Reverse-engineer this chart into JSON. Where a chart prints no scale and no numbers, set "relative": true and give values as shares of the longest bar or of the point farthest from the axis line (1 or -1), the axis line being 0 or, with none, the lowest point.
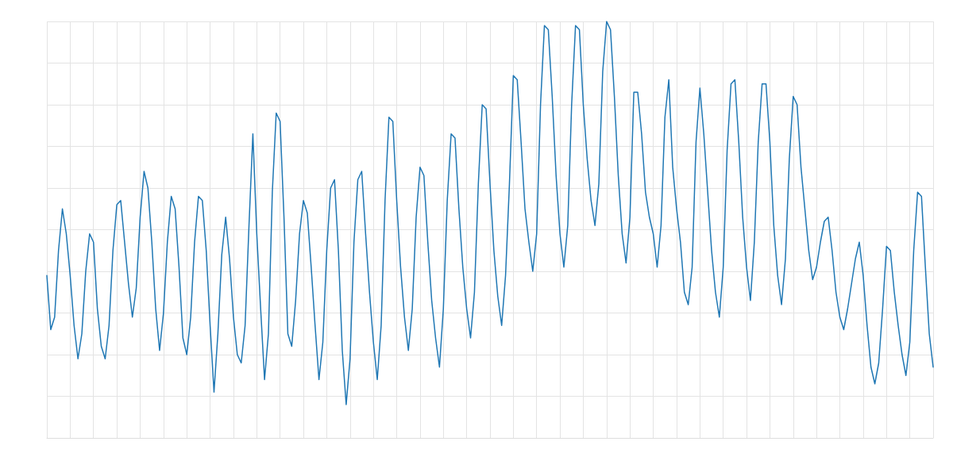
{
  "chart_data": {
    "type": "line",
    "relative": true,
    "grid": true,
    "line_style": "solid",
    "categories": [
      null,
      null,
      null,
      null,
      null,
      null,
      null,
      null,
      null,
      null,
      null,
      null,
      null,
      null,
      null,
      null,
      null,
      null,
      null,
      null,
      null,
      null,
      null,
      null,
      null,
      null,
      null,
      null,
      null,
      null,
      null,
      null,
      null,
      null,
      null,
      null,
      null,
      null,
      null,
      null,
      null,
      null,
      null,
      null,
      null,
      null,
      null,
      null,
      null,
      null,
      null,
      null,
      null,
      null,
      null,
      null,
      null,
      null,
      null,
      null,
      null,
      null,
      null,
      null,
      null,
      null,
      null,
      null,
      null,
      null,
      null,
      null,
      null,
      null,
      null,
      null,
      null,
      null,
      null,
      null,
      null,
      null,
      null,
      null,
      null,
      null,
      null,
      null,
      null,
      null,
      null,
      null,
      null,
      null,
      null,
      null,
      null,
      null,
      null,
      null,
      null,
      null,
      null,
      null,
      null,
      null,
      null,
      null,
      null,
      null,
      null,
      null,
      null,
      null,
      null,
      null,
      null,
      null,
      null,
      null,
      null,
      null,
      null,
      null,
      null,
      null,
      null,
      null,
      null,
      null,
      null,
      null,
      null,
      null,
      null,
      null,
      null,
      null,
      null,
      null,
      null,
      null,
      null,
      null,
      null,
      null,
      null,
      null,
      null,
      null,
      null,
      null,
      null,
      null,
      null,
      null,
      null,
      null,
      null,
      null,
      null,
      null,
      null,
      null,
      null,
      null,
      null,
      null,
      null,
      null,
      null,
      null,
      null,
      null,
      null,
      null,
      null,
      null,
      null,
      null,
      null,
      null,
      null,
      null,
      null,
      null,
      null,
      null,
      null,
      null,
      null,
      null,
      null,
      null,
      null,
      null,
      null,
      null,
      null,
      null,
      null,
      null,
      null,
      null,
      null,
      null,
      null,
      null,
      null,
      null,
      null,
      null,
      null,
      null,
      null,
      null,
      null,
      null,
      null,
      null,
      null,
      null,
      null,
      null,
      null,
      null,
      null,
      null,
      null
    ],
    "series": [
      {
        "color": "#1f77b4",
        "values": [
          0.39,
          0.26,
          0.29,
          0.45,
          0.55,
          0.49,
          0.39,
          0.27,
          0.19,
          0.25,
          0.4,
          0.49,
          0.47,
          0.31,
          0.22,
          0.19,
          0.27,
          0.45,
          0.56,
          0.57,
          0.47,
          0.37,
          0.29,
          0.36,
          0.53,
          0.64,
          0.6,
          0.47,
          0.31,
          0.21,
          0.3,
          0.47,
          0.58,
          0.55,
          0.41,
          0.24,
          0.2,
          0.29,
          0.47,
          0.58,
          0.57,
          0.45,
          0.27,
          0.11,
          0.25,
          0.44,
          0.53,
          0.43,
          0.29,
          0.2,
          0.18,
          0.27,
          0.51,
          0.73,
          0.49,
          0.31,
          0.14,
          0.25,
          0.59,
          0.78,
          0.76,
          0.53,
          0.25,
          0.22,
          0.33,
          0.49,
          0.57,
          0.54,
          0.41,
          0.27,
          0.14,
          0.23,
          0.45,
          0.6,
          0.62,
          0.45,
          0.21,
          0.08,
          0.19,
          0.47,
          0.62,
          0.64,
          0.49,
          0.35,
          0.23,
          0.14,
          0.27,
          0.57,
          0.77,
          0.76,
          0.57,
          0.41,
          0.29,
          0.21,
          0.31,
          0.53,
          0.65,
          0.63,
          0.47,
          0.33,
          0.24,
          0.17,
          0.31,
          0.57,
          0.73,
          0.72,
          0.55,
          0.41,
          0.31,
          0.24,
          0.35,
          0.61,
          0.8,
          0.79,
          0.61,
          0.45,
          0.34,
          0.27,
          0.39,
          0.61,
          0.87,
          0.86,
          0.71,
          0.55,
          0.47,
          0.4,
          0.49,
          0.8,
          0.99,
          0.98,
          0.82,
          0.63,
          0.49,
          0.41,
          0.51,
          0.8,
          0.99,
          0.98,
          0.8,
          0.67,
          0.57,
          0.51,
          0.61,
          0.88,
          1,
          0.98,
          0.82,
          0.63,
          0.49,
          0.42,
          0.53,
          0.83,
          0.83,
          0.73,
          0.59,
          0.53,
          0.49,
          0.41,
          0.51,
          0.77,
          0.86,
          0.65,
          0.55,
          0.47,
          0.35,
          0.32,
          0.41,
          0.71,
          0.84,
          0.73,
          0.59,
          0.45,
          0.35,
          0.29,
          0.41,
          0.69,
          0.85,
          0.86,
          0.71,
          0.53,
          0.41,
          0.33,
          0.47,
          0.71,
          0.85,
          0.85,
          0.71,
          0.51,
          0.39,
          0.32,
          0.43,
          0.67,
          0.82,
          0.8,
          0.65,
          0.55,
          0.45,
          0.38,
          0.41,
          0.47,
          0.52,
          0.53,
          0.45,
          0.35,
          0.29,
          0.26,
          0.31,
          0.37,
          0.43,
          0.47,
          0.39,
          0.27,
          0.17,
          0.13,
          0.18,
          0.31,
          0.46,
          0.45,
          0.35,
          0.27,
          0.2,
          0.15,
          0.23,
          0.45,
          0.59,
          0.58,
          0.41,
          0.25,
          0.17
        ]
      }
    ]
  }
}
